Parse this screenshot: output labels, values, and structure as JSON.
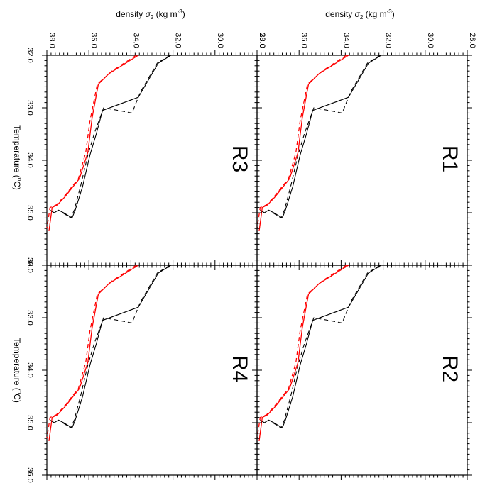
{
  "colors": {
    "red": "#ff0000",
    "black": "#000000"
  },
  "top_axis": {
    "title_prefix": "density ",
    "title_sigma": "σ",
    "title_sub": "2",
    "title_unit_prefix": " (kg m",
    "title_unit_sup": "-3",
    "title_unit_suffix": ")",
    "tick_labels": [
      "38.0",
      "36.0",
      "34.0",
      "32.0",
      "30.0",
      "28.0"
    ]
  },
  "left_axis": {
    "title_prefix": "Temperature (",
    "title_sup": "o",
    "title_suffix": "C)",
    "tick_labels": [
      "32.0",
      "33.0",
      "34.0",
      "35.0",
      "36.0"
    ]
  },
  "chart_data": [
    {
      "type": "line",
      "panel": "R1",
      "xlabel": "density σ2 (kg m-3)",
      "ylabel": "Temperature (oC)",
      "density_range": [
        38,
        28
      ],
      "temperature_range": [
        32,
        36
      ],
      "grid": false,
      "series": [
        {
          "color": "#ff0000",
          "style": "solid",
          "points": [
            [
              33.65,
              32.0
            ],
            [
              35.05,
              32.35
            ],
            [
              35.55,
              32.55
            ],
            [
              35.85,
              33.2
            ],
            [
              36.05,
              33.85
            ],
            [
              36.45,
              34.35
            ],
            [
              37.15,
              34.7
            ],
            [
              37.5,
              34.85
            ],
            [
              37.75,
              34.9
            ],
            [
              37.9,
              35.35
            ]
          ]
        },
        {
          "color": "#ff0000",
          "style": "dashed",
          "points": [
            [
              33.75,
              32.0
            ],
            [
              34.9,
              32.3
            ],
            [
              35.6,
              32.55
            ],
            [
              35.95,
              33.25
            ],
            [
              36.15,
              33.85
            ],
            [
              36.5,
              34.35
            ],
            [
              37.2,
              34.7
            ],
            [
              37.55,
              34.85
            ],
            [
              37.85,
              34.9
            ],
            [
              38.0,
              35.3
            ]
          ]
        },
        {
          "color": "#000000",
          "style": "solid",
          "points": [
            [
              32.1,
              32.0
            ],
            [
              32.7,
              32.15
            ],
            [
              33.65,
              32.8
            ],
            [
              35.35,
              33.05
            ],
            [
              35.65,
              33.5
            ],
            [
              35.95,
              33.9
            ],
            [
              36.3,
              34.5
            ],
            [
              36.65,
              34.95
            ],
            [
              36.8,
              35.1
            ],
            [
              37.2,
              35.0
            ],
            [
              37.45,
              34.95
            ],
            [
              37.65,
              35.0
            ],
            [
              37.85,
              34.95
            ]
          ]
        },
        {
          "color": "#000000",
          "style": "dashed",
          "points": [
            [
              32.15,
              32.0
            ],
            [
              32.75,
              32.15
            ],
            [
              33.55,
              32.7
            ],
            [
              33.95,
              33.1
            ],
            [
              34.6,
              33.05
            ],
            [
              35.3,
              33.0
            ],
            [
              35.75,
              33.5
            ],
            [
              36.05,
              33.9
            ],
            [
              36.4,
              34.5
            ],
            [
              36.7,
              34.95
            ],
            [
              36.85,
              35.1
            ],
            [
              37.25,
              35.0
            ]
          ]
        }
      ]
    },
    {
      "type": "line",
      "panel": "R2",
      "xlabel": "density σ2 (kg m-3)",
      "ylabel": "Temperature (oC)",
      "density_range": [
        38,
        28
      ],
      "temperature_range": [
        32,
        36
      ],
      "grid": false,
      "series": [
        {
          "color": "#ff0000",
          "style": "solid",
          "points": [
            [
              33.65,
              32.0
            ],
            [
              35.05,
              32.35
            ],
            [
              35.55,
              32.55
            ],
            [
              35.85,
              33.2
            ],
            [
              36.05,
              33.85
            ],
            [
              36.45,
              34.35
            ],
            [
              37.15,
              34.7
            ],
            [
              37.5,
              34.85
            ],
            [
              37.75,
              34.9
            ],
            [
              37.9,
              35.35
            ]
          ]
        },
        {
          "color": "#ff0000",
          "style": "dashed",
          "points": [
            [
              33.75,
              32.0
            ],
            [
              34.9,
              32.3
            ],
            [
              35.6,
              32.55
            ],
            [
              35.95,
              33.25
            ],
            [
              36.15,
              33.85
            ],
            [
              36.5,
              34.35
            ],
            [
              37.2,
              34.7
            ],
            [
              37.55,
              34.85
            ],
            [
              37.85,
              34.9
            ],
            [
              38.0,
              35.3
            ]
          ]
        },
        {
          "color": "#000000",
          "style": "solid",
          "points": [
            [
              32.1,
              32.0
            ],
            [
              32.7,
              32.15
            ],
            [
              33.65,
              32.8
            ],
            [
              35.35,
              33.05
            ],
            [
              35.65,
              33.5
            ],
            [
              35.95,
              33.9
            ],
            [
              36.3,
              34.5
            ],
            [
              36.65,
              34.95
            ],
            [
              36.8,
              35.1
            ],
            [
              37.2,
              35.0
            ],
            [
              37.45,
              34.95
            ],
            [
              37.65,
              35.0
            ],
            [
              37.85,
              34.95
            ]
          ]
        },
        {
          "color": "#000000",
          "style": "dashed",
          "points": [
            [
              32.15,
              32.0
            ],
            [
              32.75,
              32.15
            ],
            [
              33.55,
              32.7
            ],
            [
              33.95,
              33.1
            ],
            [
              34.6,
              33.05
            ],
            [
              35.3,
              33.0
            ],
            [
              35.75,
              33.5
            ],
            [
              36.05,
              33.9
            ],
            [
              36.4,
              34.5
            ],
            [
              36.7,
              34.95
            ],
            [
              36.85,
              35.1
            ],
            [
              37.25,
              35.0
            ]
          ]
        }
      ]
    },
    {
      "type": "line",
      "panel": "R3",
      "xlabel": "density σ2 (kg m-3)",
      "ylabel": "Temperature (oC)",
      "density_range": [
        38,
        28
      ],
      "temperature_range": [
        32,
        36
      ],
      "grid": false,
      "series": [
        {
          "color": "#ff0000",
          "style": "solid",
          "points": [
            [
              33.65,
              32.0
            ],
            [
              35.05,
              32.35
            ],
            [
              35.55,
              32.55
            ],
            [
              35.85,
              33.2
            ],
            [
              36.05,
              33.85
            ],
            [
              36.45,
              34.35
            ],
            [
              37.15,
              34.7
            ],
            [
              37.5,
              34.85
            ],
            [
              37.75,
              34.9
            ],
            [
              37.9,
              35.35
            ]
          ]
        },
        {
          "color": "#ff0000",
          "style": "dashed",
          "points": [
            [
              33.75,
              32.0
            ],
            [
              34.9,
              32.3
            ],
            [
              35.6,
              32.55
            ],
            [
              35.95,
              33.25
            ],
            [
              36.15,
              33.85
            ],
            [
              36.5,
              34.35
            ],
            [
              37.2,
              34.7
            ],
            [
              37.55,
              34.85
            ],
            [
              37.85,
              34.9
            ],
            [
              38.0,
              35.3
            ]
          ]
        },
        {
          "color": "#000000",
          "style": "solid",
          "points": [
            [
              32.1,
              32.0
            ],
            [
              32.7,
              32.15
            ],
            [
              33.65,
              32.8
            ],
            [
              35.35,
              33.05
            ],
            [
              35.65,
              33.5
            ],
            [
              35.95,
              33.9
            ],
            [
              36.3,
              34.5
            ],
            [
              36.65,
              34.95
            ],
            [
              36.8,
              35.1
            ],
            [
              37.2,
              35.0
            ],
            [
              37.45,
              34.95
            ],
            [
              37.65,
              35.0
            ],
            [
              37.85,
              34.95
            ]
          ]
        },
        {
          "color": "#000000",
          "style": "dashed",
          "points": [
            [
              32.15,
              32.0
            ],
            [
              32.75,
              32.15
            ],
            [
              33.55,
              32.7
            ],
            [
              33.95,
              33.1
            ],
            [
              34.6,
              33.05
            ],
            [
              35.3,
              33.0
            ],
            [
              35.75,
              33.5
            ],
            [
              36.05,
              33.9
            ],
            [
              36.4,
              34.5
            ],
            [
              36.7,
              34.95
            ],
            [
              36.85,
              35.1
            ],
            [
              37.25,
              35.0
            ]
          ]
        }
      ]
    },
    {
      "type": "line",
      "panel": "R4",
      "xlabel": "density σ2 (kg m-3)",
      "ylabel": "Temperature (oC)",
      "density_range": [
        38,
        28
      ],
      "temperature_range": [
        32,
        36
      ],
      "grid": false,
      "series": [
        {
          "color": "#ff0000",
          "style": "solid",
          "points": [
            [
              33.65,
              32.0
            ],
            [
              35.05,
              32.35
            ],
            [
              35.55,
              32.55
            ],
            [
              35.85,
              33.2
            ],
            [
              36.05,
              33.85
            ],
            [
              36.45,
              34.35
            ],
            [
              37.15,
              34.7
            ],
            [
              37.5,
              34.85
            ],
            [
              37.75,
              34.9
            ],
            [
              37.9,
              35.35
            ]
          ]
        },
        {
          "color": "#ff0000",
          "style": "dashed",
          "points": [
            [
              33.75,
              32.0
            ],
            [
              34.9,
              32.3
            ],
            [
              35.6,
              32.55
            ],
            [
              35.95,
              33.25
            ],
            [
              36.15,
              33.85
            ],
            [
              36.5,
              34.35
            ],
            [
              37.2,
              34.7
            ],
            [
              37.55,
              34.85
            ],
            [
              37.85,
              34.9
            ],
            [
              38.0,
              35.3
            ]
          ]
        },
        {
          "color": "#000000",
          "style": "solid",
          "points": [
            [
              32.1,
              32.0
            ],
            [
              32.7,
              32.15
            ],
            [
              33.65,
              32.8
            ],
            [
              35.35,
              33.05
            ],
            [
              35.65,
              33.5
            ],
            [
              35.95,
              33.9
            ],
            [
              36.3,
              34.5
            ],
            [
              36.65,
              34.95
            ],
            [
              36.8,
              35.1
            ],
            [
              37.2,
              35.0
            ],
            [
              37.45,
              34.95
            ],
            [
              37.65,
              35.0
            ],
            [
              37.85,
              34.95
            ]
          ]
        },
        {
          "color": "#000000",
          "style": "dashed",
          "points": [
            [
              32.15,
              32.0
            ],
            [
              32.75,
              32.15
            ],
            [
              33.55,
              32.7
            ],
            [
              33.95,
              33.1
            ],
            [
              34.6,
              33.05
            ],
            [
              35.3,
              33.0
            ],
            [
              35.75,
              33.5
            ],
            [
              36.05,
              33.9
            ],
            [
              36.4,
              34.5
            ],
            [
              36.7,
              34.95
            ],
            [
              36.85,
              35.1
            ],
            [
              37.25,
              35.0
            ]
          ]
        }
      ]
    }
  ]
}
